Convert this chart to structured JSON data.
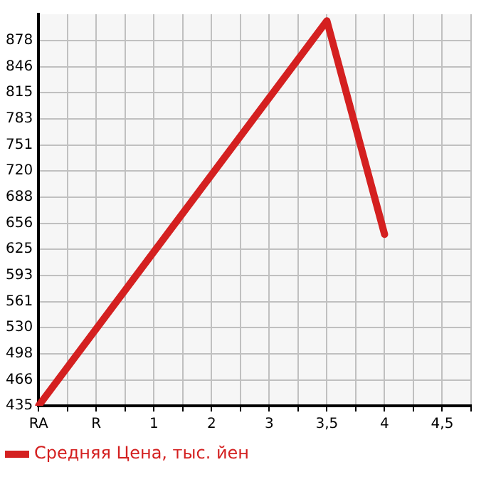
{
  "chart_data": {
    "type": "line",
    "categories": [
      "RA",
      null,
      "R",
      null,
      "1",
      null,
      "2",
      null,
      "3",
      null,
      "3,5",
      null,
      "4",
      null,
      "4,5",
      null
    ],
    "series": [
      {
        "name": "Средняя Цена, тыс. йен",
        "color": "#d42020",
        "values": [
          435,
          null,
          null,
          null,
          null,
          null,
          null,
          null,
          null,
          null,
          902,
          null,
          643,
          null,
          null,
          null
        ]
      }
    ],
    "ylim": [
      435,
      910
    ],
    "yticks": [
      435,
      466,
      498,
      530,
      561,
      593,
      625,
      656,
      688,
      720,
      751,
      783,
      815,
      846,
      878
    ],
    "grid": true,
    "legend": "bottom left",
    "marker": "none",
    "line_style": "solid"
  }
}
